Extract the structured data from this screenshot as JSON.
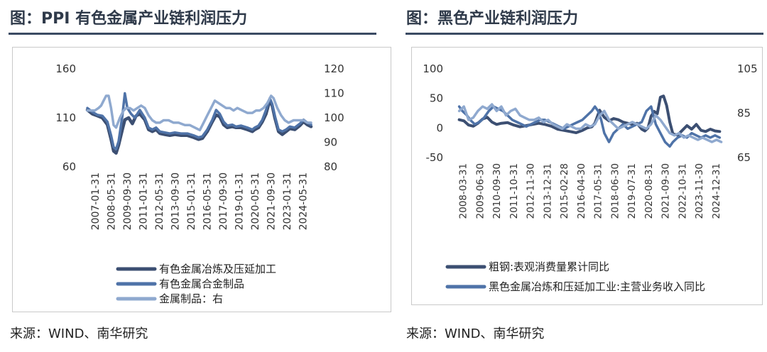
{
  "panels": [
    {
      "title": "图：PPI 有色金属产业链利润压力",
      "source": "来源：WIND、南华研究"
    },
    {
      "title": "图：黑色产业链利润压力",
      "source": "来源：WIND、南华研究"
    }
  ],
  "colors": {
    "dark": "#3c4f72",
    "mid": "#4f73a8",
    "light": "#8fa9cf"
  },
  "chart_data": [
    {
      "type": "line",
      "x_tick_labels": [
        "2007-01-31",
        "2008-05-31",
        "2009-09-30",
        "2011-01-31",
        "2012-05-31",
        "2013-09-30",
        "2015-01-31",
        "2016-05-31",
        "2017-09-30",
        "2019-01-31",
        "2020-05-31",
        "2021-09-30",
        "2023-01-31",
        "2024-05-31"
      ],
      "x_range": [
        2007.0,
        2024.9
      ],
      "y_left": {
        "range": [
          60,
          160
        ],
        "ticks": [
          60,
          110,
          160
        ]
      },
      "y_right": {
        "range": [
          80,
          120
        ],
        "ticks": [
          80,
          90,
          100,
          110,
          120
        ]
      },
      "legend_position": "bottom",
      "series": [
        {
          "name": "有色金属冶炼及压延加工",
          "axis": "left",
          "color": "dark",
          "x": [
            2007.0,
            2007.4,
            2007.8,
            2008.2,
            2008.6,
            2008.9,
            2009.1,
            2009.3,
            2009.5,
            2009.8,
            2010.0,
            2010.3,
            2010.6,
            2010.9,
            2011.2,
            2011.6,
            2011.9,
            2012.2,
            2012.5,
            2012.8,
            2013.2,
            2013.6,
            2014.0,
            2014.5,
            2015.0,
            2015.5,
            2015.9,
            2016.2,
            2016.6,
            2017.0,
            2017.3,
            2017.6,
            2017.9,
            2018.2,
            2018.6,
            2018.9,
            2019.3,
            2019.8,
            2020.2,
            2020.4,
            2020.7,
            2021.0,
            2021.3,
            2021.6,
            2021.8,
            2022.0,
            2022.3,
            2022.6,
            2022.9,
            2023.2,
            2023.6,
            2024.0,
            2024.3,
            2024.6,
            2024.9
          ],
          "y": [
            118,
            114,
            112,
            110,
            103,
            88,
            76,
            74,
            82,
            98,
            108,
            110,
            104,
            112,
            114,
            108,
            98,
            96,
            98,
            94,
            93,
            92,
            93,
            92,
            92,
            90,
            88,
            89,
            96,
            106,
            113,
            111,
            103,
            100,
            101,
            100,
            100,
            98,
            96,
            98,
            100,
            106,
            114,
            128,
            122,
            110,
            96,
            93,
            96,
            99,
            98,
            102,
            106,
            103,
            101
          ]
        },
        {
          "name": "有色金属合金制品",
          "axis": "left",
          "color": "mid",
          "x": [
            2007.0,
            2007.4,
            2007.8,
            2008.2,
            2008.6,
            2008.9,
            2009.1,
            2009.3,
            2009.5,
            2009.8,
            2010.0,
            2010.2,
            2010.5,
            2010.8,
            2011.2,
            2011.6,
            2011.9,
            2012.2,
            2012.5,
            2012.8,
            2013.2,
            2013.6,
            2014.0,
            2014.5,
            2015.0,
            2015.5,
            2015.9,
            2016.2,
            2016.6,
            2017.0,
            2017.3,
            2017.6,
            2017.9,
            2018.2,
            2018.6,
            2018.9,
            2019.3,
            2019.8,
            2020.2,
            2020.4,
            2020.7,
            2021.0,
            2021.3,
            2021.6,
            2021.8,
            2022.0,
            2022.3,
            2022.6,
            2022.9,
            2023.2,
            2023.6,
            2024.0,
            2024.3,
            2024.6,
            2024.9
          ],
          "y": [
            120,
            116,
            113,
            112,
            106,
            92,
            80,
            78,
            86,
            112,
            135,
            120,
            114,
            110,
            118,
            110,
            100,
            98,
            100,
            96,
            95,
            94,
            95,
            94,
            94,
            92,
            90,
            91,
            98,
            108,
            118,
            114,
            106,
            102,
            103,
            101,
            102,
            100,
            98,
            100,
            102,
            108,
            118,
            130,
            124,
            112,
            98,
            96,
            98,
            101,
            100,
            104,
            108,
            105,
            103
          ]
        },
        {
          "name": "金属制品：右",
          "axis": "right",
          "color": "light",
          "x": [
            2007.0,
            2007.3,
            2007.6,
            2007.9,
            2008.1,
            2008.3,
            2008.5,
            2008.7,
            2008.9,
            2009.1,
            2009.3,
            2009.6,
            2009.9,
            2010.1,
            2010.4,
            2010.7,
            2011.0,
            2011.3,
            2011.6,
            2011.9,
            2012.2,
            2012.5,
            2012.8,
            2013.1,
            2013.5,
            2013.9,
            2014.3,
            2014.8,
            2015.2,
            2015.6,
            2016.0,
            2016.3,
            2016.6,
            2016.9,
            2017.2,
            2017.5,
            2017.8,
            2018.1,
            2018.4,
            2018.7,
            2019.0,
            2019.4,
            2019.8,
            2020.2,
            2020.5,
            2020.8,
            2021.1,
            2021.4,
            2021.7,
            2021.9,
            2022.2,
            2022.5,
            2022.8,
            2023.1,
            2023.5,
            2023.9,
            2024.3,
            2024.6,
            2024.9
          ],
          "y": [
            103,
            103,
            103,
            104,
            105,
            107,
            109,
            109,
            104,
            97,
            96,
            100,
            103,
            104,
            104,
            103,
            104,
            105,
            104,
            101,
            99,
            98,
            98,
            99,
            99,
            98,
            98,
            97,
            97,
            96,
            95,
            98,
            101,
            104,
            107,
            106,
            105,
            104,
            104,
            103,
            104,
            103,
            102,
            102,
            103,
            103,
            104,
            106,
            109,
            108,
            104,
            101,
            99,
            98,
            99,
            99,
            99,
            98,
            98
          ]
        }
      ]
    },
    {
      "type": "line",
      "x_tick_labels": [
        "2008-03-31",
        "2009-06-30",
        "2010-09-30",
        "2011-10-31",
        "2012-11-30",
        "2013-12-31",
        "2015-02-28",
        "2016-04-30",
        "2017-05-31",
        "2018-06-30",
        "2019-07-31",
        "2020-08-31",
        "2021-09-30",
        "2022-10-31",
        "2023-11-30",
        "2024-12-31"
      ],
      "x_range": [
        2008.0,
        2025.3
      ],
      "y_left": {
        "range": [
          -50,
          100
        ],
        "ticks": [
          -50,
          0,
          50,
          100
        ]
      },
      "y_right": {
        "range": [
          65,
          105
        ],
        "ticks": [
          65,
          85,
          105
        ]
      },
      "legend_position": "bottom",
      "series": [
        {
          "name": "粗钢:表观消费量累计同比",
          "axis": "left",
          "color": "dark",
          "x": [
            2008.3,
            2008.6,
            2008.9,
            2009.2,
            2009.5,
            2009.8,
            2010.1,
            2010.4,
            2010.7,
            2011.0,
            2011.4,
            2011.8,
            2012.2,
            2012.6,
            2013.0,
            2013.4,
            2013.8,
            2014.2,
            2014.6,
            2015.0,
            2015.4,
            2015.8,
            2016.2,
            2016.5,
            2016.8,
            2017.0,
            2017.3,
            2017.6,
            2017.9,
            2018.2,
            2018.5,
            2018.8,
            2019.1,
            2019.4,
            2019.7,
            2020.0,
            2020.2,
            2020.4,
            2020.6,
            2020.8,
            2021.0,
            2021.2,
            2021.4,
            2021.6,
            2021.8,
            2022.0,
            2022.3,
            2022.6,
            2022.9,
            2023.2,
            2023.5,
            2023.8,
            2024.1,
            2024.4,
            2024.7,
            2025.0
          ],
          "y": [
            14,
            12,
            5,
            3,
            8,
            15,
            18,
            10,
            6,
            8,
            9,
            5,
            2,
            4,
            6,
            8,
            6,
            3,
            -2,
            -4,
            -6,
            -8,
            -4,
            0,
            2,
            8,
            30,
            18,
            12,
            16,
            14,
            10,
            8,
            6,
            8,
            -2,
            -5,
            0,
            20,
            28,
            24,
            52,
            54,
            38,
            10,
            -10,
            -12,
            -4,
            4,
            -2,
            6,
            -4,
            -6,
            -2,
            -5,
            -6
          ]
        },
        {
          "name": "黑色金属冶炼和压延加工业:主营业务收入同比",
          "axis": "right",
          "color": "mid",
          "x": [
            2008.3,
            2008.5,
            2008.8,
            2009.0,
            2009.3,
            2009.6,
            2009.9,
            2010.2,
            2010.5,
            2010.8,
            2011.1,
            2011.4,
            2011.7,
            2012.0,
            2012.3,
            2012.6,
            2012.9,
            2013.2,
            2013.5,
            2013.8,
            2014.1,
            2014.4,
            2014.7,
            2015.0,
            2015.3,
            2015.6,
            2015.9,
            2016.2,
            2016.5,
            2016.8,
            2017.0,
            2017.2,
            2017.4,
            2017.6,
            2017.9,
            2018.2,
            2018.5,
            2018.8,
            2019.1,
            2019.4,
            2019.7,
            2020.0,
            2020.3,
            2020.6,
            2020.9,
            2021.2,
            2021.5,
            2021.8,
            2022.0,
            2022.3,
            2022.6,
            2022.9,
            2023.2,
            2023.5,
            2023.8,
            2024.1,
            2024.4,
            2024.7,
            2025.0
          ],
          "y": [
            88,
            86,
            84,
            82,
            80,
            81,
            83,
            86,
            88,
            87,
            86,
            84,
            82,
            81,
            80,
            79,
            80,
            81,
            82,
            82,
            81,
            80,
            79,
            78,
            79,
            80,
            81,
            82,
            84,
            86,
            88,
            86,
            82,
            76,
            72,
            76,
            78,
            80,
            78,
            79,
            80,
            81,
            86,
            88,
            80,
            76,
            72,
            70,
            72,
            74,
            75,
            74,
            76,
            75,
            74,
            75,
            74,
            75,
            74
          ]
        },
        {
          "name": "",
          "axis": "right",
          "color": "light",
          "x": [
            2008.3,
            2008.6,
            2008.9,
            2009.2,
            2009.5,
            2009.8,
            2010.1,
            2010.4,
            2010.7,
            2011.0,
            2011.3,
            2011.6,
            2011.9,
            2012.2,
            2012.5,
            2012.8,
            2013.1,
            2013.4,
            2013.7,
            2014.0,
            2014.3,
            2014.6,
            2014.9,
            2015.2,
            2015.5,
            2015.8,
            2016.1,
            2016.4,
            2016.7,
            2017.0,
            2017.3,
            2017.6,
            2017.9,
            2018.2,
            2018.5,
            2018.8,
            2019.1,
            2019.4,
            2019.7,
            2020.0,
            2020.3,
            2020.6,
            2020.9,
            2021.2,
            2021.5,
            2021.8,
            2022.1,
            2022.4,
            2022.7,
            2023.0,
            2023.3,
            2023.6,
            2023.9,
            2024.2,
            2024.5,
            2024.8,
            2025.1
          ],
          "y": [
            86,
            88,
            82,
            83,
            86,
            88,
            87,
            89,
            86,
            88,
            84,
            86,
            87,
            84,
            83,
            82,
            82,
            83,
            81,
            82,
            80,
            79,
            78,
            80,
            79,
            78,
            78,
            80,
            79,
            80,
            84,
            86,
            82,
            80,
            78,
            79,
            80,
            81,
            80,
            79,
            78,
            80,
            84,
            82,
            79,
            76,
            75,
            76,
            74,
            75,
            74,
            73,
            74,
            73,
            72,
            73,
            72
          ]
        }
      ]
    }
  ]
}
